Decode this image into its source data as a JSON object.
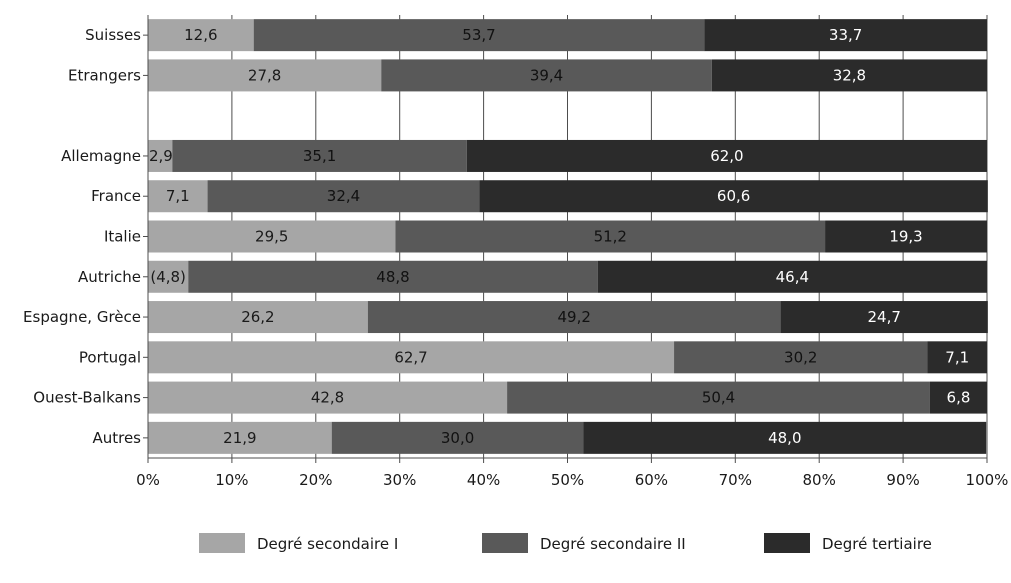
{
  "chart_data": {
    "type": "bar",
    "orientation": "horizontal",
    "stacked": true,
    "title": "",
    "xlabel": "",
    "ylabel": "",
    "xlim": [
      0,
      100
    ],
    "x_ticks": [
      "0%",
      "10%",
      "20%",
      "30%",
      "40%",
      "50%",
      "60%",
      "70%",
      "80%",
      "90%",
      "100%"
    ],
    "grid": "vertical",
    "legend_position": "bottom",
    "categories": [
      "Suisses",
      "Etrangers",
      "",
      "Allemagne",
      "France",
      "Italie",
      "Autriche",
      "Espagne, Grèce",
      "Portugal",
      "Ouest-Balkans",
      "Autres"
    ],
    "series": [
      {
        "name": "Degré secondaire I",
        "color": "#a6a6a6",
        "label_color": "#1a1a1a",
        "values": [
          12.6,
          27.8,
          null,
          2.9,
          7.1,
          29.5,
          4.8,
          26.2,
          62.7,
          42.8,
          21.9
        ],
        "labels": [
          "12,6",
          "27,8",
          "",
          "2,9",
          "7,1",
          "29,5",
          "(4,8)",
          "26,2",
          "62,7",
          "42,8",
          "21,9"
        ]
      },
      {
        "name": "Degré secondaire II",
        "color": "#595959",
        "label_color": "#111111",
        "values": [
          53.7,
          39.4,
          null,
          35.1,
          32.4,
          51.2,
          48.8,
          49.2,
          30.2,
          50.4,
          30.0
        ],
        "labels": [
          "53,7",
          "39,4",
          "",
          "35,1",
          "32,4",
          "51,2",
          "48,8",
          "49,2",
          "30,2",
          "50,4",
          "30,0"
        ]
      },
      {
        "name": "Degré tertiaire",
        "color": "#2b2b2b",
        "label_color": "#ffffff",
        "values": [
          33.7,
          32.8,
          null,
          62.0,
          60.6,
          19.3,
          46.4,
          24.7,
          7.1,
          6.8,
          48.0
        ],
        "labels": [
          "33,7",
          "32,8",
          "",
          "62,0",
          "60,6",
          "19,3",
          "46,4",
          "24,7",
          "7,1",
          "6,8",
          "48,0"
        ]
      }
    ]
  }
}
